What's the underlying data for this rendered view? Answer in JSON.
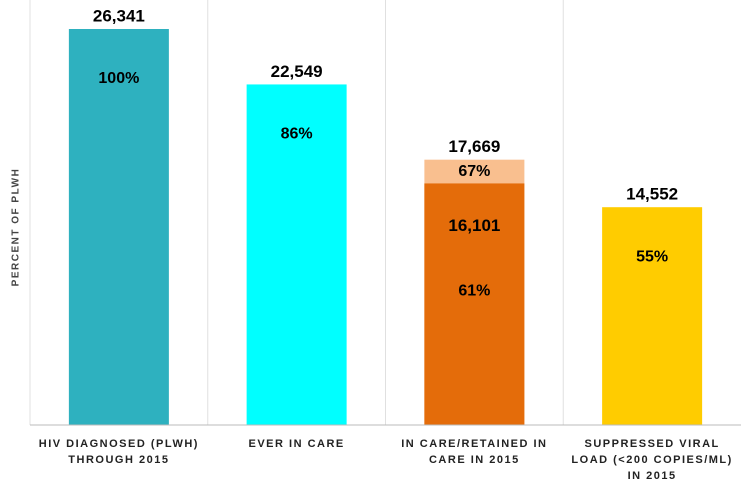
{
  "chart_data": {
    "type": "bar",
    "y_label": "PERCENT OF PLWH",
    "categories": [
      "HIV DIAGNOSED (PLWH) THROUGH 2015",
      "EVER IN CARE",
      "IN CARE/RETAINED IN CARE IN 2015",
      "SUPPRESSED VIRAL LOAD (<200 COPIES/ML) IN 2015"
    ],
    "ylim": [
      0,
      100
    ],
    "series": [
      {
        "colors": [
          "#2eb1bf",
          "#00ffff",
          "#f9bf8f",
          "#ffcc00"
        ],
        "values": [
          100,
          86,
          67,
          55
        ],
        "value_labels": [
          "100%",
          "86%",
          "67%",
          "55%"
        ],
        "counts": [
          {
            "value": 26341,
            "label": "26,341"
          },
          {
            "value": 22549,
            "label": "22,549"
          },
          {
            "value": 17669,
            "label": "17,669"
          },
          {
            "value": 14552,
            "label": "14,552"
          }
        ]
      },
      {
        "colors": [
          null,
          null,
          "#e46c0a",
          null
        ],
        "values": [
          null,
          null,
          61,
          null
        ],
        "value_labels": [
          null,
          null,
          "61%",
          null
        ],
        "counts": [
          null,
          null,
          {
            "value": 16101,
            "label": "16,101"
          },
          null
        ]
      }
    ]
  }
}
